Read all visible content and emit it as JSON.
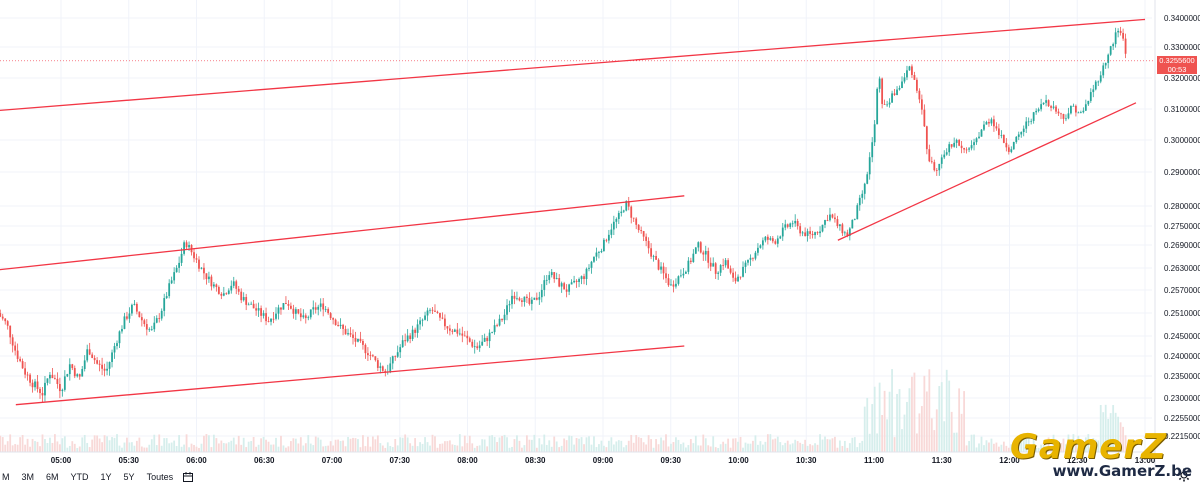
{
  "chart_data": {
    "type": "candlestick",
    "x_ticks": [
      "05:00",
      "05:30",
      "06:00",
      "06:30",
      "07:00",
      "07:30",
      "08:00",
      "08:30",
      "09:00",
      "09:30",
      "10:00",
      "10:30",
      "11:00",
      "11:30",
      "12:00",
      "12:30",
      "13:00"
    ],
    "y_ticks": [
      "0.3400000",
      "0.3300000",
      "0.3200000",
      "0.3100000",
      "0.3000000",
      "0.2900000",
      "0.2800000",
      "0.2750000",
      "0.2690000",
      "0.2630000",
      "0.2570000",
      "0.2510000",
      "0.2450000",
      "0.2400000",
      "0.2350000",
      "0.2300000",
      "0.2255000",
      "0.2215000"
    ],
    "last_price": "0.3255600",
    "countdown": "00:53",
    "close_path": [
      [
        "04:32",
        0.251
      ],
      [
        "04:36",
        0.248
      ],
      [
        "04:40",
        0.241
      ],
      [
        "04:44",
        0.236
      ],
      [
        "04:48",
        0.233
      ],
      [
        "04:52",
        0.231
      ],
      [
        "04:55",
        0.236
      ],
      [
        "05:00",
        0.232
      ],
      [
        "05:04",
        0.238
      ],
      [
        "05:08",
        0.234
      ],
      [
        "05:12",
        0.242
      ],
      [
        "05:16",
        0.238
      ],
      [
        "05:20",
        0.236
      ],
      [
        "05:24",
        0.243
      ],
      [
        "05:28",
        0.249
      ],
      [
        "05:32",
        0.253
      ],
      [
        "05:36",
        0.249
      ],
      [
        "05:40",
        0.246
      ],
      [
        "05:44",
        0.251
      ],
      [
        "05:48",
        0.258
      ],
      [
        "05:52",
        0.264
      ],
      [
        "05:55",
        0.27
      ],
      [
        "06:00",
        0.265
      ],
      [
        "06:04",
        0.261
      ],
      [
        "06:08",
        0.258
      ],
      [
        "06:12",
        0.256
      ],
      [
        "06:16",
        0.259
      ],
      [
        "06:20",
        0.255
      ],
      [
        "06:24",
        0.253
      ],
      [
        "06:28",
        0.251
      ],
      [
        "06:32",
        0.249
      ],
      [
        "06:36",
        0.252
      ],
      [
        "06:40",
        0.254
      ],
      [
        "06:44",
        0.251
      ],
      [
        "06:48",
        0.249
      ],
      [
        "06:52",
        0.252
      ],
      [
        "06:56",
        0.253
      ],
      [
        "07:00",
        0.25
      ],
      [
        "07:04",
        0.247
      ],
      [
        "07:08",
        0.245
      ],
      [
        "07:12",
        0.243
      ],
      [
        "07:16",
        0.241
      ],
      [
        "07:20",
        0.238
      ],
      [
        "07:24",
        0.236
      ],
      [
        "07:28",
        0.24
      ],
      [
        "07:32",
        0.244
      ],
      [
        "07:36",
        0.246
      ],
      [
        "07:40",
        0.249
      ],
      [
        "07:44",
        0.252
      ],
      [
        "07:48",
        0.249
      ],
      [
        "07:52",
        0.247
      ],
      [
        "07:56",
        0.246
      ],
      [
        "08:00",
        0.244
      ],
      [
        "08:04",
        0.242
      ],
      [
        "08:08",
        0.244
      ],
      [
        "08:12",
        0.247
      ],
      [
        "08:16",
        0.25
      ],
      [
        "08:20",
        0.256
      ],
      [
        "08:24",
        0.255
      ],
      [
        "08:28",
        0.253
      ],
      [
        "08:32",
        0.256
      ],
      [
        "08:36",
        0.262
      ],
      [
        "08:40",
        0.259
      ],
      [
        "08:44",
        0.257
      ],
      [
        "08:48",
        0.259
      ],
      [
        "08:52",
        0.261
      ],
      [
        "08:56",
        0.266
      ],
      [
        "09:00",
        0.269
      ],
      [
        "09:04",
        0.275
      ],
      [
        "09:08",
        0.278
      ],
      [
        "09:10",
        0.281
      ],
      [
        "09:14",
        0.276
      ],
      [
        "09:18",
        0.271
      ],
      [
        "09:22",
        0.266
      ],
      [
        "09:26",
        0.262
      ],
      [
        "09:30",
        0.258
      ],
      [
        "09:34",
        0.261
      ],
      [
        "09:38",
        0.264
      ],
      [
        "09:42",
        0.269
      ],
      [
        "09:46",
        0.266
      ],
      [
        "09:50",
        0.262
      ],
      [
        "09:54",
        0.265
      ],
      [
        "09:58",
        0.259
      ],
      [
        "10:00",
        0.261
      ],
      [
        "10:04",
        0.264
      ],
      [
        "10:08",
        0.268
      ],
      [
        "10:12",
        0.271
      ],
      [
        "10:16",
        0.27
      ],
      [
        "10:20",
        0.274
      ],
      [
        "10:24",
        0.276
      ],
      [
        "10:28",
        0.273
      ],
      [
        "10:32",
        0.272
      ],
      [
        "10:36",
        0.274
      ],
      [
        "10:40",
        0.278
      ],
      [
        "10:44",
        0.275
      ],
      [
        "10:48",
        0.272
      ],
      [
        "10:52",
        0.278
      ],
      [
        "10:56",
        0.286
      ],
      [
        "11:00",
        0.302
      ],
      [
        "11:02",
        0.322
      ],
      [
        "11:04",
        0.31
      ],
      [
        "11:08",
        0.314
      ],
      [
        "11:12",
        0.318
      ],
      [
        "11:16",
        0.324
      ],
      [
        "11:20",
        0.314
      ],
      [
        "11:22",
        0.306
      ],
      [
        "11:24",
        0.294
      ],
      [
        "11:28",
        0.29
      ],
      [
        "11:32",
        0.297
      ],
      [
        "11:36",
        0.3
      ],
      [
        "11:40",
        0.296
      ],
      [
        "11:44",
        0.298
      ],
      [
        "11:48",
        0.304
      ],
      [
        "11:52",
        0.307
      ],
      [
        "11:56",
        0.301
      ],
      [
        "12:00",
        0.297
      ],
      [
        "12:04",
        0.301
      ],
      [
        "12:08",
        0.306
      ],
      [
        "12:12",
        0.309
      ],
      [
        "12:16",
        0.313
      ],
      [
        "12:20",
        0.31
      ],
      [
        "12:24",
        0.307
      ],
      [
        "12:28",
        0.311
      ],
      [
        "12:32",
        0.308
      ],
      [
        "12:36",
        0.315
      ],
      [
        "12:40",
        0.321
      ],
      [
        "12:44",
        0.328
      ],
      [
        "12:48",
        0.336
      ],
      [
        "12:50",
        0.334
      ],
      [
        "12:52",
        0.3256
      ]
    ],
    "trendlines": [
      {
        "from": [
          "04:32",
          0.3095
        ],
        "to": [
          "13:00",
          0.3395
        ]
      },
      {
        "from": [
          "04:32",
          0.2625
        ],
        "to": [
          "09:36",
          0.283
        ]
      },
      {
        "from": [
          "04:40",
          0.2285
        ],
        "to": [
          "09:36",
          0.2425
        ]
      },
      {
        "from": [
          "10:44",
          0.2705
        ],
        "to": [
          "12:56",
          0.312
        ]
      }
    ]
  },
  "range_buttons": [
    "M",
    "3M",
    "6M",
    "YTD",
    "1Y",
    "5Y",
    "Toutes"
  ],
  "watermark": {
    "logo": "GamerZ",
    "url": "www.GamerZ.be"
  },
  "colors": {
    "up": "#26a69a",
    "down": "#ef5350",
    "trend": "#f23645",
    "price_tag": "#ef5350"
  }
}
